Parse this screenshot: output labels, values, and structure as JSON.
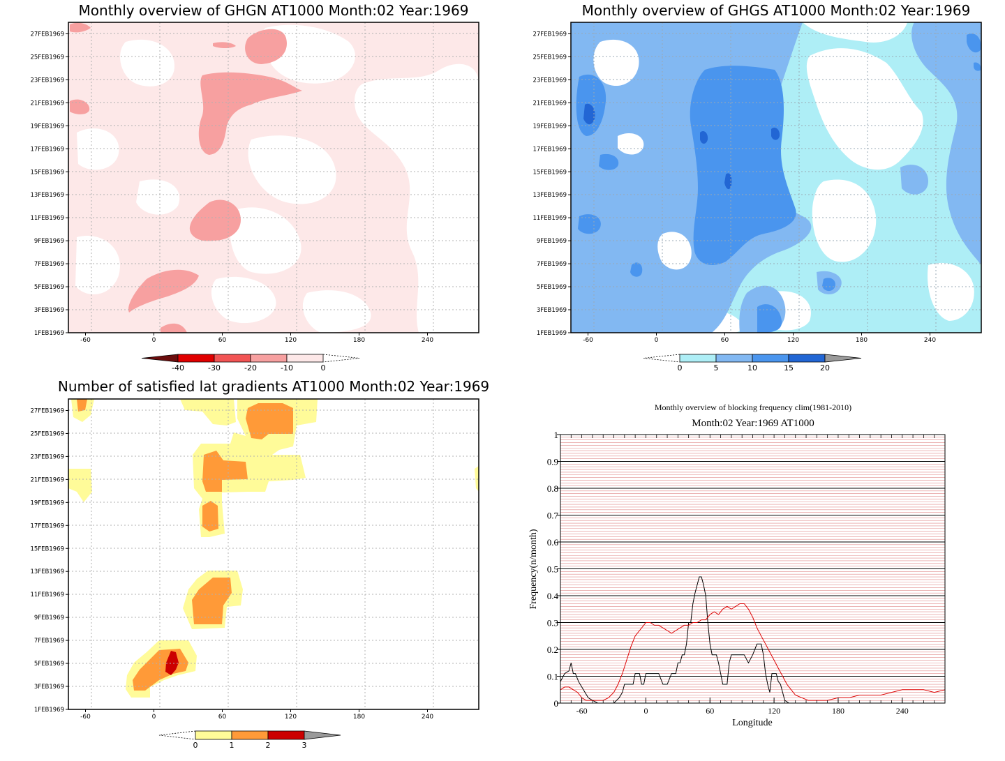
{
  "chart_data": [
    {
      "id": "ghgn",
      "type": "heatmap",
      "title": "Monthly overview of GHGN AT1000 Month:02 Year:1969",
      "xticks": [
        -60,
        0,
        60,
        120,
        180,
        240
      ],
      "xlim": [
        -75,
        285
      ],
      "yticks": [
        "1FEB1969",
        "3FEB1969",
        "5FEB1969",
        "7FEB1969",
        "9FEB1969",
        "11FEB1969",
        "13FEB1969",
        "15FEB1969",
        "17FEB1969",
        "19FEB1969",
        "21FEB1969",
        "23FEB1969",
        "25FEB1969",
        "27FEB1969"
      ],
      "ylim": [
        1,
        28
      ],
      "grid": true,
      "colorbar": {
        "labels": [
          "-40",
          "-30",
          "-20",
          "-10",
          "0"
        ],
        "colors": [
          "#6b0d0d",
          "#e00000",
          "#f25454",
          "#f7a0a0",
          "#fde8e8"
        ]
      }
    },
    {
      "id": "ghgs",
      "type": "heatmap",
      "title": "Monthly overview of GHGS AT1000 Month:02 Year:1969",
      "xticks": [
        -60,
        0,
        60,
        120,
        180,
        240
      ],
      "xlim": [
        -75,
        285
      ],
      "yticks": [
        "1FEB1969",
        "3FEB1969",
        "5FEB1969",
        "7FEB1969",
        "9FEB1969",
        "11FEB1969",
        "13FEB1969",
        "15FEB1969",
        "17FEB1969",
        "19FEB1969",
        "21FEB1969",
        "23FEB1969",
        "25FEB1969",
        "27FEB1969"
      ],
      "ylim": [
        1,
        28
      ],
      "grid": true,
      "colorbar": {
        "labels": [
          "0",
          "5",
          "10",
          "15",
          "20"
        ],
        "colors": [
          "#aeeef6",
          "#82b8f2",
          "#4a95ee",
          "#2266d4",
          "#9a9a9a"
        ]
      }
    },
    {
      "id": "latgrad",
      "type": "heatmap",
      "title": "Number of satisfied lat gradients AT1000 Month:02 Year:1969",
      "xticks": [
        -60,
        0,
        60,
        120,
        180,
        240
      ],
      "xlim": [
        -75,
        285
      ],
      "yticks": [
        "1FEB1969",
        "3FEB1969",
        "5FEB1969",
        "7FEB1969",
        "9FEB1969",
        "11FEB1969",
        "13FEB1969",
        "15FEB1969",
        "17FEB1969",
        "19FEB1969",
        "21FEB1969",
        "23FEB1969",
        "25FEB1969",
        "27FEB1969"
      ],
      "ylim": [
        1,
        28
      ],
      "grid": true,
      "colorbar": {
        "labels": [
          "0",
          "1",
          "2",
          "3"
        ],
        "colors": [
          "#fffb99",
          "#ff9a38",
          "#cc0000",
          "#9a9a9a"
        ]
      }
    },
    {
      "id": "blockfreq",
      "type": "line",
      "title": "Monthly overview of blocking frequency clim(1981-2010)",
      "subtitle": "Month:02 Year:1969  AT1000",
      "xlabel": "Longitude",
      "ylabel": "Frequency(n/month)",
      "xticks": [
        -60,
        0,
        60,
        120,
        180,
        240
      ],
      "xlim": [
        -80,
        280
      ],
      "ylim": [
        0,
        1
      ],
      "yticks": [
        "0",
        "0.1",
        "0.2",
        "0.3",
        "0.4",
        "0.5",
        "0.6",
        "0.7",
        "0.8",
        "0.9",
        "1"
      ],
      "grid": true,
      "series": [
        {
          "color": "#000000",
          "x": [
            -80,
            -76,
            -72,
            -70,
            -68,
            -66,
            -63,
            -60,
            -57,
            -54,
            -50,
            -45,
            -40,
            -35,
            -30,
            -25,
            -22,
            -20,
            -18,
            -16,
            -14,
            -12,
            -10,
            -8,
            -6,
            -4,
            -2,
            0,
            4,
            8,
            12,
            16,
            20,
            24,
            28,
            30,
            32,
            34,
            36,
            38,
            40,
            42,
            44,
            46,
            48,
            50,
            52,
            54,
            56,
            58,
            60,
            62,
            64,
            66,
            68,
            70,
            72,
            74,
            76,
            78,
            80,
            84,
            88,
            92,
            96,
            100,
            104,
            108,
            110,
            112,
            114,
            116,
            118,
            120,
            122,
            124,
            126,
            128,
            130,
            134,
            140,
            150,
            160,
            170,
            180,
            190,
            200,
            210,
            220,
            230,
            240,
            250,
            260,
            270,
            280
          ],
          "y": [
            0.08,
            0.11,
            0.12,
            0.15,
            0.11,
            0.11,
            0.08,
            0.06,
            0.04,
            0.02,
            0.01,
            0.0,
            0.0,
            0.0,
            0.0,
            0.02,
            0.04,
            0.07,
            0.07,
            0.07,
            0.07,
            0.07,
            0.11,
            0.11,
            0.11,
            0.07,
            0.07,
            0.11,
            0.11,
            0.11,
            0.11,
            0.07,
            0.07,
            0.11,
            0.11,
            0.15,
            0.15,
            0.18,
            0.18,
            0.22,
            0.3,
            0.3,
            0.37,
            0.41,
            0.44,
            0.47,
            0.47,
            0.44,
            0.4,
            0.3,
            0.22,
            0.18,
            0.18,
            0.18,
            0.15,
            0.11,
            0.07,
            0.07,
            0.07,
            0.15,
            0.18,
            0.18,
            0.18,
            0.18,
            0.15,
            0.18,
            0.22,
            0.22,
            0.18,
            0.11,
            0.07,
            0.04,
            0.11,
            0.11,
            0.11,
            0.08,
            0.07,
            0.04,
            0.01,
            0.0,
            0.0,
            0.0,
            0.0,
            0.0,
            0.0,
            0.0,
            0.0,
            0.0,
            0.0,
            0.0,
            0.0,
            0.0,
            0.0,
            0.0,
            0.0
          ]
        },
        {
          "color": "#dd0000",
          "x": [
            -80,
            -76,
            -72,
            -68,
            -64,
            -60,
            -56,
            -50,
            -45,
            -40,
            -35,
            -30,
            -26,
            -22,
            -18,
            -14,
            -10,
            -6,
            -2,
            0,
            4,
            8,
            12,
            16,
            20,
            24,
            28,
            32,
            36,
            40,
            44,
            48,
            52,
            56,
            60,
            64,
            68,
            72,
            76,
            80,
            84,
            88,
            92,
            96,
            100,
            104,
            108,
            112,
            116,
            120,
            124,
            128,
            132,
            136,
            140,
            146,
            152,
            160,
            170,
            180,
            190,
            200,
            210,
            220,
            230,
            240,
            250,
            260,
            270,
            280
          ],
          "y": [
            0.05,
            0.06,
            0.06,
            0.05,
            0.04,
            0.02,
            0.01,
            0.01,
            0.01,
            0.01,
            0.02,
            0.04,
            0.07,
            0.11,
            0.16,
            0.21,
            0.25,
            0.27,
            0.29,
            0.3,
            0.3,
            0.29,
            0.29,
            0.28,
            0.27,
            0.26,
            0.27,
            0.28,
            0.29,
            0.29,
            0.3,
            0.3,
            0.31,
            0.31,
            0.33,
            0.34,
            0.33,
            0.35,
            0.36,
            0.35,
            0.36,
            0.37,
            0.37,
            0.35,
            0.32,
            0.28,
            0.25,
            0.22,
            0.19,
            0.16,
            0.13,
            0.1,
            0.07,
            0.05,
            0.03,
            0.02,
            0.01,
            0.01,
            0.01,
            0.02,
            0.02,
            0.03,
            0.03,
            0.03,
            0.04,
            0.05,
            0.05,
            0.05,
            0.04,
            0.05
          ]
        }
      ]
    }
  ]
}
